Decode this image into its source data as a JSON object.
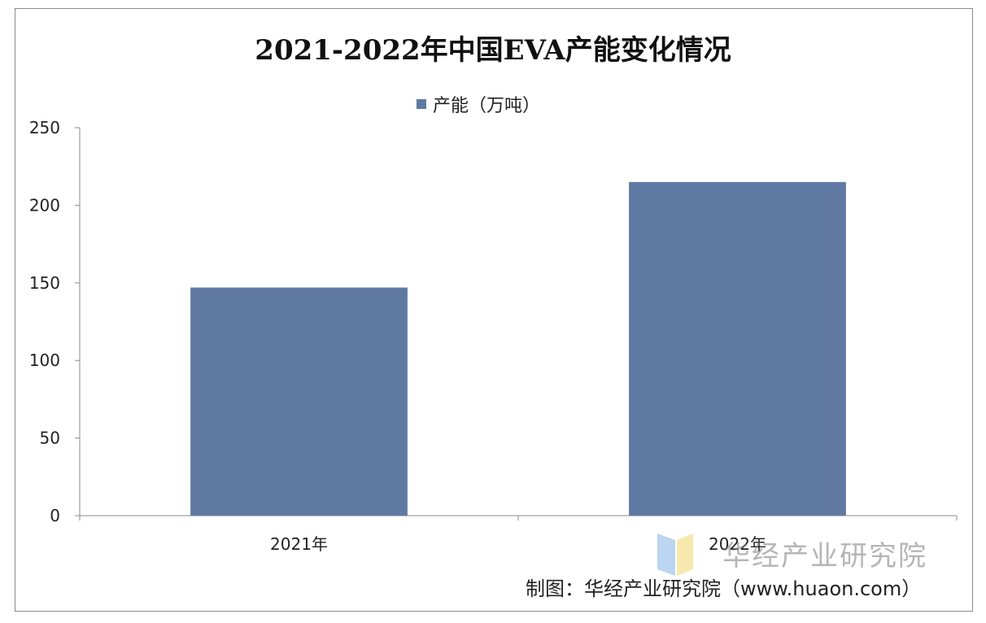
{
  "chart_data": {
    "type": "bar",
    "title": "2021-2022年中国EVA产能变化情况",
    "categories": [
      "2021年",
      "2022年"
    ],
    "series": [
      {
        "name": "产能（万吨）",
        "values": [
          147,
          215
        ]
      }
    ],
    "ylim": [
      0,
      250
    ],
    "yticks": [
      "0",
      "50",
      "100",
      "150",
      "200",
      "250"
    ],
    "grid": false,
    "legend_position": "top",
    "bar_color": "#6079a3"
  },
  "watermark": {
    "text": "华经产业研究院"
  },
  "source": "制图：华经产业研究院（www.huaon.com）"
}
